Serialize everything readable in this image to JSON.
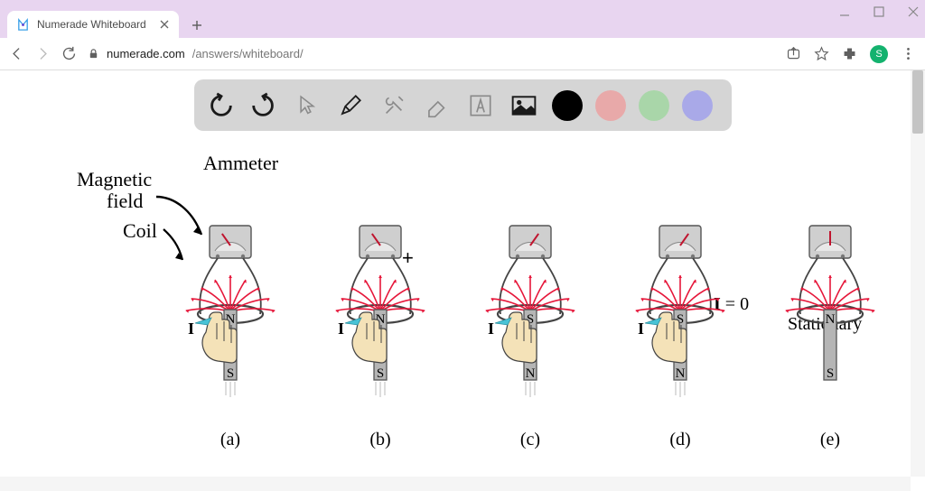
{
  "window": {
    "app": "Chrome"
  },
  "tab": {
    "title": "Numerade Whiteboard"
  },
  "address": {
    "domain": "numerade.com",
    "path": "/answers/whiteboard/"
  },
  "avatar_letter": "S",
  "toolbar": {
    "swatches": [
      "#000000",
      "#e8a9a9",
      "#a9d6a9",
      "#a9a9e8"
    ]
  },
  "diagram": {
    "top_labels": {
      "ammeter": "Ammeter",
      "magnetic_field": "Magnetic",
      "magnetic_field2": "field",
      "coil": "Coil"
    },
    "current_label": "I",
    "stationary_label": "Stationary",
    "i_zero": "I = 0",
    "caps": [
      "(a)",
      "(b)",
      "(c)",
      "(d)",
      "(e)"
    ],
    "scenes": [
      {
        "top_pole": "N",
        "bot_pole": "S",
        "hand": true,
        "arrow": "up",
        "needle": -35
      },
      {
        "top_pole": "N",
        "bot_pole": "S",
        "hand": true,
        "arrow": "down",
        "needle": -35
      },
      {
        "top_pole": "S",
        "bot_pole": "N",
        "hand": true,
        "arrow": "up",
        "needle": 35
      },
      {
        "top_pole": "S",
        "bot_pole": "N",
        "hand": true,
        "arrow": "down",
        "needle": 35
      },
      {
        "top_pole": "N",
        "bot_pole": "S",
        "hand": false,
        "arrow": "none",
        "needle": 0
      }
    ],
    "colors": {
      "field_line": "#e6173a",
      "hand_fill": "#f4e2b8",
      "hand_stroke": "#444",
      "magnet_fill": "#b5b5b5",
      "magnet_stroke": "#555",
      "ammeter_fill": "#cfcfcf",
      "ammeter_face": "#e8e8e8",
      "ammeter_needle": "#c0152f",
      "coil": "#444",
      "arrow_blue": "#49c3d6"
    }
  }
}
